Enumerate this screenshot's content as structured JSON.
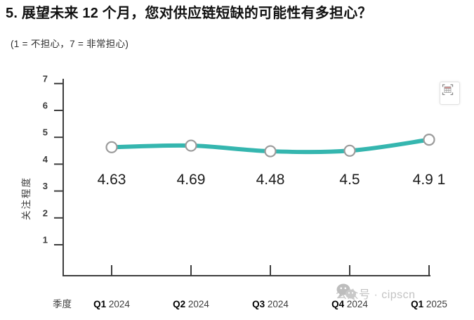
{
  "title": "5. 展望未来 12 个月，您对供应链短缺的可能性有多担心？",
  "subtitle": "(1 = 不担心，7 = 非常担心)",
  "toolbar": {
    "table_button_icon": "table-view-icon"
  },
  "watermark": {
    "icon": "wechat-icon",
    "text": "公众号 · cipscn"
  },
  "chart_data": {
    "type": "line",
    "categories": [
      "Q1 2024",
      "Q2 2024",
      "Q3 2024",
      "Q4 2024",
      "Q1 2025"
    ],
    "values": [
      4.63,
      4.69,
      4.48,
      4.5,
      4.91
    ],
    "point_labels": [
      "4.63",
      "4.69",
      "4.48",
      "4.5",
      "4.9 1"
    ],
    "xlabel": "季度",
    "ylabel": "关注程度",
    "yticks": [
      1,
      2,
      3,
      4,
      5,
      6,
      7
    ],
    "ylim": [
      1,
      7
    ],
    "grid": false,
    "legend": "none",
    "colors": {
      "line": "#35b6af",
      "marker_fill": "#ffffff",
      "marker_stroke": "#9b9b9b",
      "axis": "#3d3d3d",
      "tick_label": "#3a3a3a",
      "point_label": "#1c1c1c",
      "category_q": "#000000",
      "category_year": "#3c3c3c"
    }
  }
}
